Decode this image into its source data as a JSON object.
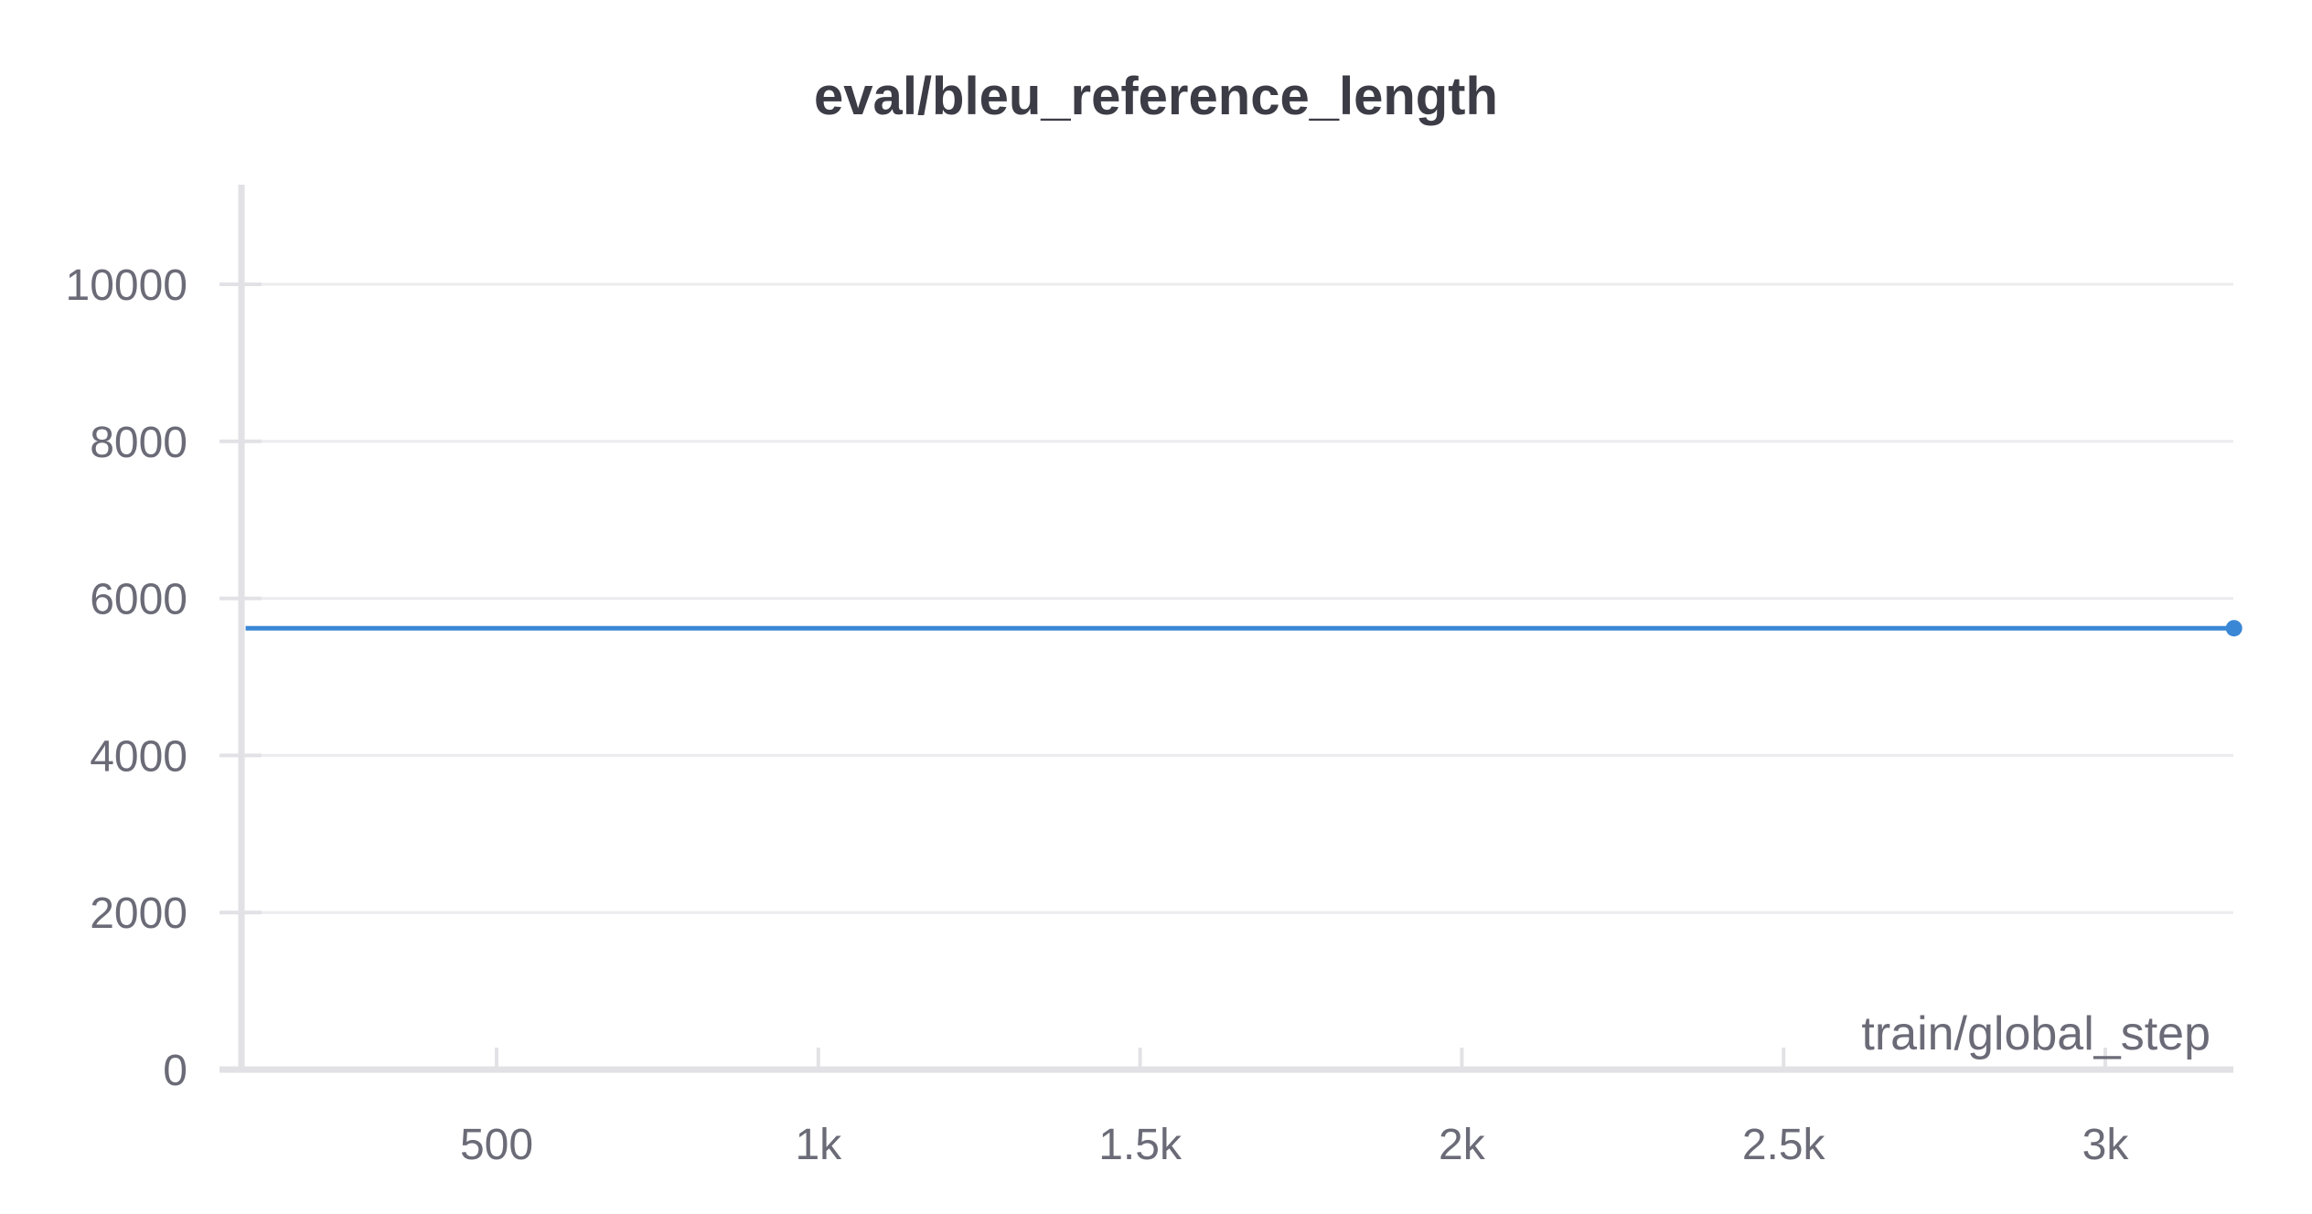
{
  "chart_data": {
    "type": "line",
    "title": "eval/bleu_reference_length",
    "xlabel": "train/global_step",
    "ylabel": "",
    "xlim": [
      100,
      3200
    ],
    "ylim": [
      0,
      11200
    ],
    "x_ticks": [
      500,
      1000,
      1500,
      2000,
      2500,
      3000
    ],
    "x_tick_labels": [
      "500",
      "1k",
      "1.5k",
      "2k",
      "2.5k",
      "3k"
    ],
    "y_ticks": [
      0,
      2000,
      4000,
      6000,
      8000,
      10000
    ],
    "y_tick_labels": [
      "0",
      "2000",
      "4000",
      "6000",
      "8000",
      "10000"
    ],
    "grid": true,
    "series": [
      {
        "color": "#3a87d6",
        "x": [
          110,
          3200
        ],
        "y": [
          5620,
          5620
        ],
        "end_marker": true
      }
    ]
  }
}
